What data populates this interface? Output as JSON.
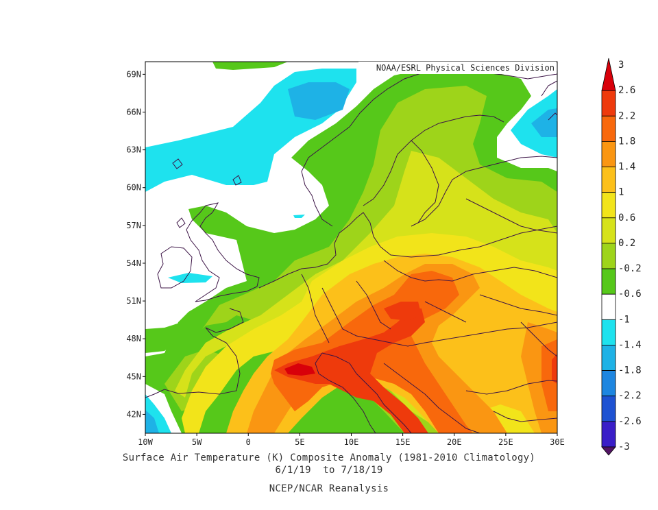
{
  "map": {
    "credit": "NOAA/ESRL Physical Sciences Division",
    "lat_labels": [
      "69N",
      "66N",
      "63N",
      "60N",
      "57N",
      "54N",
      "51N",
      "48N",
      "45N",
      "42N"
    ],
    "lon_labels": [
      "10W",
      "5W",
      "0",
      "5E",
      "10E",
      "15E",
      "20E",
      "25E",
      "30E"
    ],
    "extent": {
      "lon_min": -10,
      "lon_max": 30,
      "lat_min": 40.5,
      "lat_max": 70
    }
  },
  "caption": {
    "title": "Surface Air Temperature (K) Composite Anomaly (1981-2010 Climatology)",
    "dates": "6/1/19  to 7/18/19",
    "source": "NCEP/NCAR Reanalysis"
  },
  "colorbar": {
    "labels": [
      "3",
      "2.6",
      "2.2",
      "1.8",
      "1.4",
      "1",
      "0.6",
      "0.2",
      "-0.2",
      "-0.6",
      "-1",
      "-1.4",
      "-1.8",
      "-2.2",
      "-2.6",
      "-3"
    ],
    "colors": [
      "#d8000a",
      "#ee3a0c",
      "#f8680c",
      "#fa9612",
      "#fcc01a",
      "#f2e41a",
      "#d6e21a",
      "#9ed41a",
      "#56c81a",
      "#ffffff",
      "#1ee2ee",
      "#1eb2e6",
      "#1e86e0",
      "#1e52d2",
      "#3a1ec8",
      "#6a1ecc",
      "#961ec6",
      "#c41ec6",
      "#a01c96",
      "#7a1a7c",
      "#521464"
    ]
  },
  "legend_palette": {
    "deep_red": "#d8000a",
    "red": "#ee3a0c",
    "orange_red": "#f8680c",
    "orange": "#fa9612",
    "yellow_orange": "#fcc01a",
    "yellow": "#f2e41a",
    "yellow_green": "#d6e21a",
    "light_green": "#9ed41a",
    "green": "#56c81a",
    "neutral": "#ffffff",
    "cyan": "#1ee2ee",
    "coastline": "#3c1446"
  }
}
